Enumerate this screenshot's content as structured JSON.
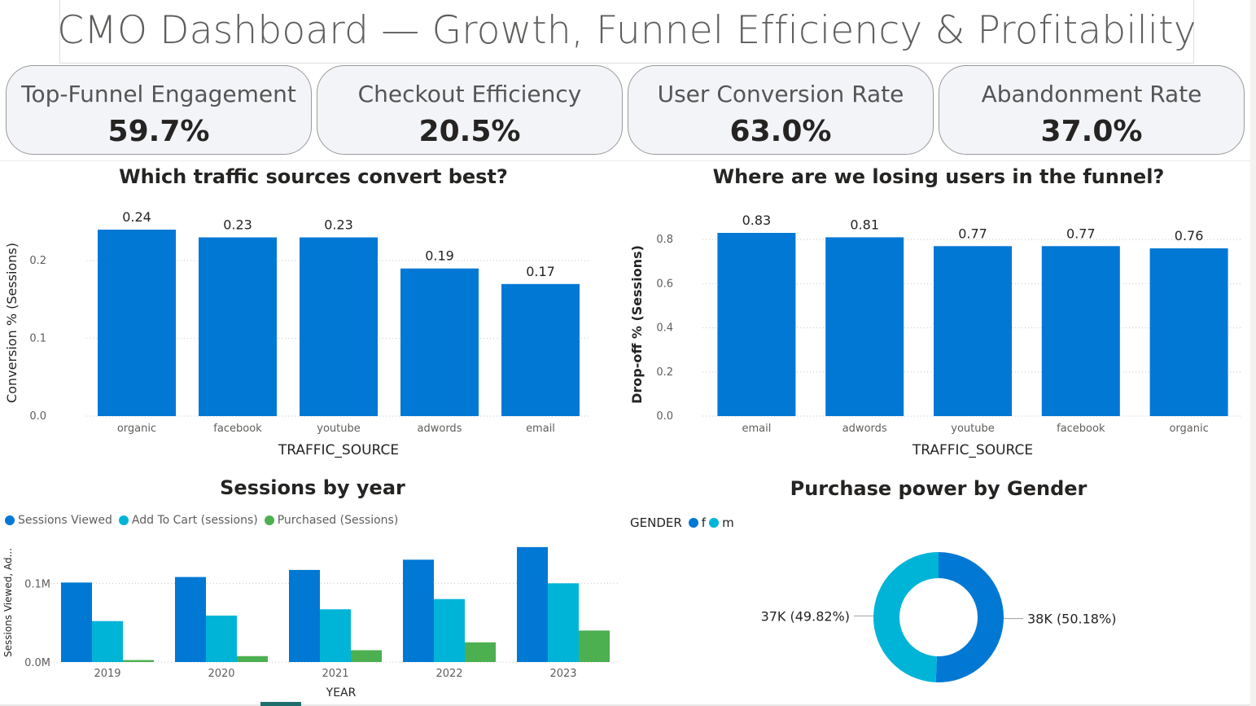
{
  "header": {
    "title": "CMO Dashboard — Growth, Funnel Efficiency & Profitability"
  },
  "kpis": [
    {
      "label": "Top-Funnel Engagement",
      "value": "59.7%"
    },
    {
      "label": "Checkout Efficiency",
      "value": "20.5%"
    },
    {
      "label": "User Conversion Rate",
      "value": "63.0%"
    },
    {
      "label": "Abandonment Rate",
      "value": "37.0%"
    }
  ],
  "colors": {
    "primary": "#0078d4",
    "secondary": "#00b4d8",
    "tertiary": "#4caf50",
    "grid": "#c8c6c4"
  },
  "chart_data": [
    {
      "id": "conversion",
      "type": "bar",
      "title": "Which traffic sources convert best?",
      "xlabel": "TRAFFIC_SOURCE",
      "ylabel": "Conversion % (Sessions)",
      "categories": [
        "organic",
        "facebook",
        "youtube",
        "adwords",
        "email"
      ],
      "values": [
        0.24,
        0.23,
        0.23,
        0.19,
        0.17
      ],
      "data_labels": [
        "0.24",
        "0.23",
        "0.23",
        "0.19",
        "0.17"
      ],
      "ylim": [
        0,
        0.24
      ],
      "yticks": [
        0,
        0.1,
        0.2
      ],
      "ytick_labels": [
        "0.0",
        "0.1",
        "0.2"
      ],
      "grid": true
    },
    {
      "id": "dropoff",
      "type": "bar",
      "title": "Where are we losing users in the funnel?",
      "xlabel": "TRAFFIC_SOURCE",
      "ylabel": "Drop-off % (Sessions)",
      "categories": [
        "email",
        "adwords",
        "youtube",
        "facebook",
        "organic"
      ],
      "values": [
        0.83,
        0.81,
        0.77,
        0.77,
        0.76
      ],
      "data_labels": [
        "0.83",
        "0.81",
        "0.77",
        "0.77",
        "0.76"
      ],
      "ylim": [
        0,
        0.83
      ],
      "yticks": [
        0,
        0.2,
        0.4,
        0.6,
        0.8
      ],
      "ytick_labels": [
        "0.0",
        "0.2",
        "0.4",
        "0.6",
        "0.8"
      ],
      "grid": true
    },
    {
      "id": "sessions",
      "type": "bar",
      "title": "Sessions by year",
      "xlabel": "YEAR",
      "ylabel": "Sessions Viewed, Ad...",
      "categories": [
        "2019",
        "2020",
        "2021",
        "2022",
        "2023"
      ],
      "series": [
        {
          "name": "Sessions Viewed",
          "values": [
            101000,
            108000,
            117000,
            130000,
            146000
          ]
        },
        {
          "name": "Add To Cart (sessions)",
          "values": [
            52000,
            59000,
            67000,
            80000,
            100000
          ]
        },
        {
          "name": "Purchased (Sessions)",
          "values": [
            2500,
            7500,
            15000,
            25000,
            40000
          ]
        }
      ],
      "ylim": [
        0,
        150000
      ],
      "yticks": [
        0,
        100000
      ],
      "ytick_labels": [
        "0.0M",
        "0.1M"
      ],
      "legend_position": "top-left",
      "grid": true
    },
    {
      "id": "gender",
      "type": "pie",
      "title": "Purchase power by Gender",
      "legend_title": "GENDER",
      "categories": [
        "f",
        "m"
      ],
      "values": [
        38000,
        37000
      ],
      "percentages": [
        50.18,
        49.82
      ],
      "data_labels": [
        "38K (50.18%)",
        "37K (49.82%)"
      ],
      "legend_position": "top-left"
    }
  ]
}
